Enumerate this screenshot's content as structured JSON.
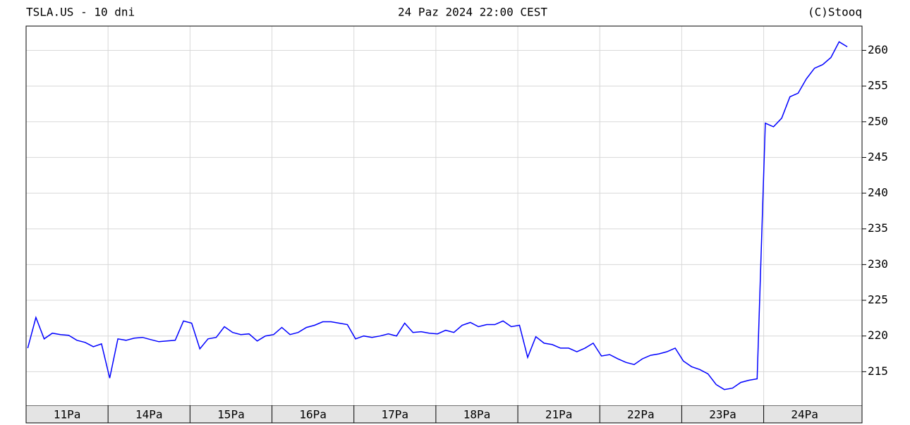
{
  "chart_data": {
    "type": "line",
    "title": "TSLA.US - 10 dni",
    "subtitle": "24 Paz 2024 22:00 CEST",
    "source": "(C)Stooq",
    "categories": [
      "11Pa",
      "14Pa",
      "15Pa",
      "16Pa",
      "17Pa",
      "18Pa",
      "21Pa",
      "22Pa",
      "23Pa",
      "24Pa"
    ],
    "xlim": [
      0,
      10.2
    ],
    "ylim": [
      210.3,
      263.4
    ],
    "yticks": [
      215,
      220,
      225,
      230,
      235,
      240,
      245,
      250,
      255,
      260
    ],
    "grid": true,
    "series": [
      {
        "color": "#0000ff",
        "x": [
          0.02,
          0.12,
          0.22,
          0.32,
          0.42,
          0.52,
          0.62,
          0.72,
          0.82,
          0.92,
          1.02,
          1.12,
          1.22,
          1.32,
          1.42,
          1.52,
          1.62,
          1.72,
          1.82,
          1.92,
          2.02,
          2.12,
          2.22,
          2.32,
          2.42,
          2.52,
          2.62,
          2.72,
          2.82,
          2.92,
          3.02,
          3.12,
          3.22,
          3.32,
          3.42,
          3.52,
          3.62,
          3.72,
          3.82,
          3.92,
          4.02,
          4.12,
          4.22,
          4.32,
          4.42,
          4.52,
          4.62,
          4.72,
          4.82,
          4.92,
          5.02,
          5.12,
          5.22,
          5.32,
          5.42,
          5.52,
          5.62,
          5.72,
          5.82,
          5.92,
          6.02,
          6.12,
          6.22,
          6.32,
          6.42,
          6.52,
          6.62,
          6.72,
          6.82,
          6.92,
          7.02,
          7.12,
          7.22,
          7.32,
          7.42,
          7.52,
          7.62,
          7.72,
          7.82,
          7.92,
          8.02,
          8.12,
          8.22,
          8.32,
          8.42,
          8.52,
          8.62,
          8.72,
          8.82,
          8.92,
          9.02,
          9.12,
          9.22,
          9.32,
          9.42,
          9.52,
          9.62,
          9.72,
          9.82,
          9.92,
          10.02
        ],
        "values": [
          218.3,
          222.6,
          219.6,
          220.4,
          220.2,
          220.1,
          219.4,
          219.1,
          218.5,
          218.9,
          214.1,
          219.6,
          219.4,
          219.7,
          219.8,
          219.5,
          219.2,
          219.3,
          219.4,
          222.1,
          221.8,
          218.2,
          219.6,
          219.8,
          221.3,
          220.5,
          220.2,
          220.3,
          219.3,
          220.0,
          220.2,
          221.2,
          220.2,
          220.5,
          221.2,
          221.5,
          222.0,
          222.0,
          221.8,
          221.6,
          219.6,
          220.0,
          219.8,
          220.0,
          220.3,
          220.0,
          221.8,
          220.5,
          220.6,
          220.4,
          220.3,
          220.8,
          220.5,
          221.5,
          221.9,
          221.3,
          221.6,
          221.6,
          222.1,
          221.3,
          221.5,
          217.0,
          219.9,
          219.0,
          218.8,
          218.3,
          218.3,
          217.8,
          218.3,
          219.0,
          217.2,
          217.4,
          216.8,
          216.3,
          216.0,
          216.8,
          217.3,
          217.5,
          217.8,
          218.3,
          216.5,
          215.7,
          215.3,
          214.7,
          213.2,
          212.5,
          212.7,
          213.5,
          213.8,
          214.0,
          249.8,
          249.3,
          250.5,
          253.5,
          254.0,
          256.0,
          257.5,
          258.0,
          259.0,
          261.2,
          260.5
        ]
      }
    ]
  }
}
